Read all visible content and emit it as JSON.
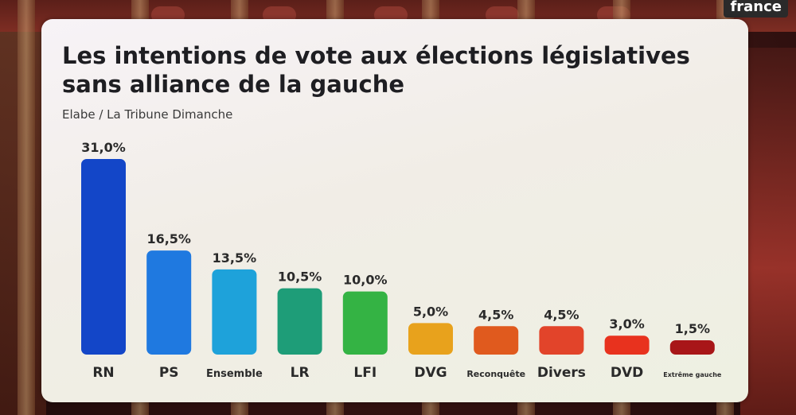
{
  "title_line1": "Les intentions de vote aux élections législatives",
  "title_line2": "sans alliance de la gauche",
  "source": "Elabe / La Tribune Dimanche",
  "logo_text": "france",
  "chart_data": {
    "type": "bar",
    "categories": [
      "RN",
      "PS",
      "Ensemble",
      "LR",
      "LFI",
      "DVG",
      "Reconquête",
      "Divers",
      "DVD",
      "Extrême gauche"
    ],
    "values": [
      31.0,
      16.5,
      13.5,
      10.5,
      10.0,
      5.0,
      4.5,
      4.5,
      3.0,
      1.5
    ],
    "value_labels": [
      "31,0%",
      "16,5%",
      "13,5%",
      "10,5%",
      "10,0%",
      "5,0%",
      "4,5%",
      "4,5%",
      "3,0%",
      "1,5%"
    ],
    "colors": [
      "#1346c8",
      "#1f79e0",
      "#1ea2da",
      "#1e9d78",
      "#34b344",
      "#e8a21c",
      "#e05a1e",
      "#e2442a",
      "#e8321e",
      "#a81618"
    ],
    "ylim": [
      0,
      31.0
    ],
    "grid": false
  }
}
